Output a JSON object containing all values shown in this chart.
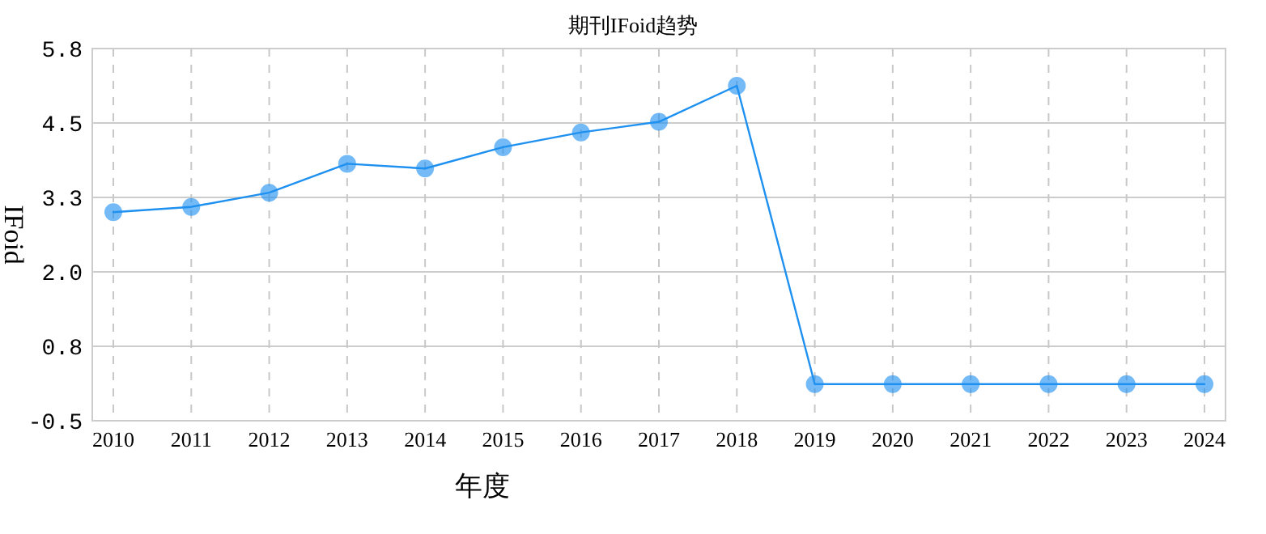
{
  "chart_data": {
    "type": "line",
    "title": "期刊IFoid趋势",
    "xlabel": "年度",
    "ylabel": "IFoid",
    "categories": [
      "2010",
      "2011",
      "2012",
      "2013",
      "2014",
      "2015",
      "2016",
      "2017",
      "2018",
      "2019",
      "2020",
      "2021",
      "2022",
      "2023",
      "2024"
    ],
    "series": [
      {
        "color": "#1e90f0",
        "values": [
          3.03,
          3.12,
          3.36,
          3.85,
          3.77,
          4.13,
          4.38,
          4.56,
          5.17,
          0.12,
          0.12,
          0.12,
          0.12,
          0.12,
          0.12
        ]
      }
    ],
    "ylim": [
      -0.5,
      5.8
    ],
    "yticks": [
      {
        "value": -0.5,
        "label": "-0.5"
      },
      {
        "value": 0.76,
        "label": "0.8"
      },
      {
        "value": 2.02,
        "label": "2.0"
      },
      {
        "value": 3.28,
        "label": "3.3"
      },
      {
        "value": 4.54,
        "label": "4.5"
      },
      {
        "value": 5.8,
        "label": "5.8"
      }
    ],
    "grid": true,
    "marker": "circle",
    "line_style": "solid"
  }
}
